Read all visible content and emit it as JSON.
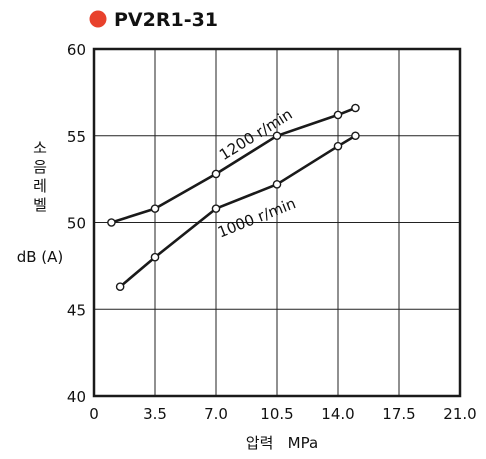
{
  "title": "PV2R1-31",
  "colors": {
    "title_dot": "#e8412c",
    "line": "#1a1a1a",
    "grid": "#222222"
  },
  "chart_data": {
    "type": "line",
    "xlabel": "압력   MPa",
    "ylabel_lines": [
      "소",
      "음",
      "레",
      "벨"
    ],
    "ylabel_unit": "dB (A)",
    "xlim": [
      0,
      21
    ],
    "ylim": [
      40,
      60
    ],
    "xticks": [
      0,
      3.5,
      7,
      10.5,
      14,
      17.5,
      21
    ],
    "xtick_labels": [
      "0",
      "3.5",
      "7.0",
      "10.5",
      "14.0",
      "17.5",
      "21.0"
    ],
    "yticks": [
      40,
      45,
      50,
      55,
      60
    ],
    "ytick_labels": [
      "40",
      "45",
      "50",
      "55",
      "60"
    ],
    "grid": true,
    "series": [
      {
        "name": "1200 r/min",
        "x": [
          1.0,
          3.5,
          7.0,
          10.5,
          14.0,
          15.0
        ],
        "y": [
          50.0,
          50.8,
          52.8,
          55.0,
          56.2,
          56.6
        ]
      },
      {
        "name": "1000 r/min",
        "x": [
          1.5,
          3.5,
          7.0,
          10.5,
          14.0,
          15.0
        ],
        "y": [
          46.3,
          48.0,
          50.8,
          52.2,
          54.4,
          55.0
        ]
      }
    ]
  }
}
